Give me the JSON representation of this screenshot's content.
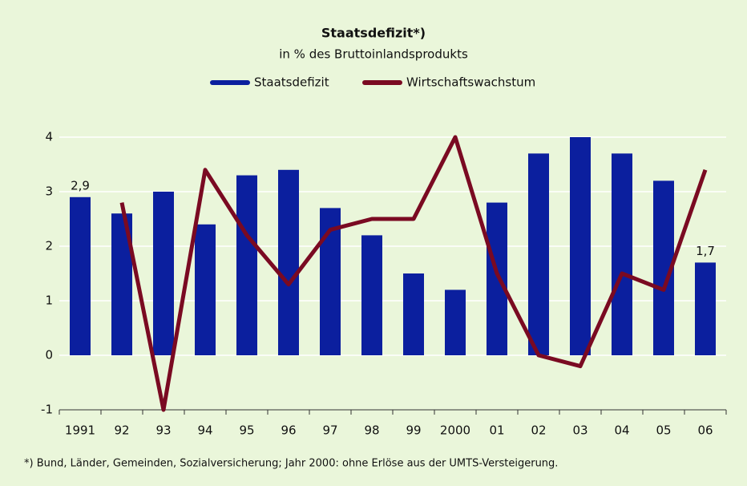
{
  "chart_data": {
    "type": "bar_line",
    "title": "Staatsdefizit*)",
    "subtitle": "in % des Bruttoinlandsprodukts",
    "categories": [
      "1991",
      "92",
      "93",
      "94",
      "95",
      "96",
      "97",
      "98",
      "99",
      "2000",
      "01",
      "02",
      "03",
      "04",
      "05",
      "06"
    ],
    "series": [
      {
        "name": "Staatsdefizit",
        "type": "bar",
        "color": "#0b1f9e",
        "values": [
          2.9,
          2.6,
          3.0,
          2.4,
          3.3,
          3.4,
          2.7,
          2.2,
          1.5,
          1.2,
          2.8,
          3.7,
          4.0,
          3.7,
          3.2,
          1.7
        ],
        "value_labels": [
          "2,9",
          null,
          null,
          null,
          null,
          null,
          null,
          null,
          null,
          null,
          null,
          null,
          null,
          null,
          null,
          "1,7"
        ]
      },
      {
        "name": "Wirtschaftswachstum",
        "type": "line",
        "color": "#7a0a22",
        "values": [
          null,
          2.8,
          -1.0,
          3.4,
          2.2,
          1.3,
          2.3,
          2.5,
          2.5,
          4.0,
          1.5,
          0.0,
          -0.2,
          1.5,
          1.2,
          3.4
        ]
      }
    ],
    "ylim": [
      -1,
      4
    ],
    "yticks": [
      -1,
      0,
      1,
      2,
      3,
      4
    ],
    "grid": true,
    "legend": "top",
    "footnote": "*) Bund, Länder, Gemeinden, Sozialversicherung; Jahr 2000: ohne Erlöse aus der UMTS-Versteigerung."
  }
}
